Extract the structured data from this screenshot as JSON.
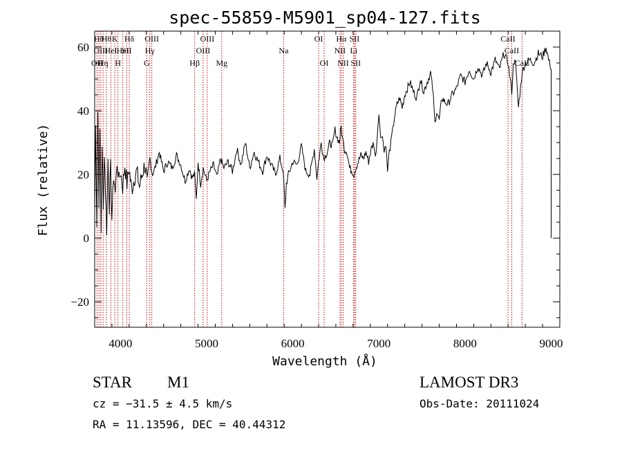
{
  "chart_data": {
    "type": "line",
    "title": "spec-55859-M5901_sp04-127.fits",
    "xlabel": "Wavelength (Å)",
    "ylabel": "Flux (relative)",
    "xlim": [
      3700,
      9100
    ],
    "ylim": [
      -28,
      65
    ],
    "xticks": [
      4000,
      5000,
      6000,
      7000,
      8000,
      9000
    ],
    "yticks": [
      -20,
      0,
      20,
      40,
      60
    ],
    "xtick_labels": [
      "4000",
      "5000",
      "6000",
      "7000",
      "8000",
      "9000"
    ],
    "ytick_labels": [
      "−20",
      "0",
      "20",
      "40",
      "60"
    ],
    "series": [
      {
        "name": "flux",
        "x": [
          3700,
          3712,
          3725,
          3737,
          3750,
          3762,
          3775,
          3787,
          3800,
          3812,
          3825,
          3840,
          3855,
          3870,
          3885,
          3900,
          3920,
          3940,
          3960,
          3980,
          4000,
          4025,
          4050,
          4075,
          4100,
          4130,
          4160,
          4190,
          4220,
          4250,
          4280,
          4310,
          4340,
          4370,
          4400,
          4450,
          4500,
          4550,
          4600,
          4650,
          4700,
          4750,
          4800,
          4830,
          4860,
          4880,
          4900,
          4930,
          4960,
          5000,
          5040,
          5080,
          5120,
          5160,
          5200,
          5250,
          5300,
          5350,
          5400,
          5450,
          5500,
          5550,
          5600,
          5650,
          5700,
          5750,
          5800,
          5850,
          5880,
          5895,
          5910,
          5925,
          5950,
          6000,
          6050,
          6100,
          6150,
          6200,
          6250,
          6280,
          6300,
          6330,
          6360,
          6400,
          6430,
          6460,
          6490,
          6510,
          6540,
          6562,
          6580,
          6600,
          6630,
          6660,
          6690,
          6710,
          6730,
          6760,
          6790,
          6820,
          6850,
          6880,
          6910,
          6940,
          6960,
          6980,
          7000,
          7020,
          7040,
          7060,
          7080,
          7100,
          7120,
          7140,
          7160,
          7180,
          7210,
          7240,
          7270,
          7300,
          7330,
          7360,
          7400,
          7440,
          7480,
          7520,
          7560,
          7600,
          7630,
          7650,
          7670,
          7700,
          7730,
          7760,
          7800,
          7850,
          7900,
          7950,
          8000,
          8050,
          8100,
          8150,
          8200,
          8250,
          8300,
          8350,
          8400,
          8450,
          8500,
          8542,
          8560,
          8580,
          8620,
          8662,
          8700,
          8750,
          8800,
          8850,
          8900,
          8940,
          8970,
          8990,
          9000
        ],
        "y": [
          8,
          35,
          5,
          40,
          12,
          32,
          2,
          30,
          8,
          28,
          15,
          3,
          25,
          10,
          22,
          6,
          20,
          14,
          24,
          18,
          21,
          16,
          23,
          17,
          22,
          15,
          19,
          21,
          16,
          20,
          23,
          18,
          25,
          20,
          22,
          27,
          21,
          24,
          22,
          26,
          23,
          18,
          22,
          19,
          20,
          12,
          24,
          17,
          22,
          18,
          21,
          23,
          19,
          25,
          22,
          24,
          21,
          28,
          23,
          30,
          22,
          27,
          24,
          21,
          26,
          23,
          20,
          25,
          22,
          18,
          9,
          17,
          20,
          24,
          23,
          29,
          21,
          20,
          28,
          19,
          24,
          30,
          25,
          27,
          30,
          29,
          34,
          32,
          30,
          35,
          31,
          28,
          27,
          22,
          21,
          20,
          22,
          24,
          26,
          25,
          27,
          24,
          28,
          30,
          25,
          32,
          40,
          31,
          33,
          27,
          30,
          21,
          27,
          30,
          34,
          38,
          42,
          44,
          41,
          45,
          47,
          49,
          46,
          44,
          50,
          46,
          49,
          52,
          45,
          36,
          40,
          37,
          44,
          43,
          42,
          45,
          47,
          51,
          49,
          53,
          50,
          54,
          51,
          55,
          52,
          56,
          53,
          58,
          55,
          46,
          54,
          57,
          41,
          52,
          55,
          56,
          55,
          58,
          57,
          60,
          56,
          54,
          53
        ],
        "color": "#000000"
      }
    ],
    "spectral_lines": [
      {
        "x": 3727,
        "label": "OII",
        "tier": 2
      },
      {
        "x": 3750,
        "label": "Hθ",
        "tier": 0
      },
      {
        "x": 3771,
        "label": "OIII",
        "tier": 1
      },
      {
        "x": 3798,
        "label": "Hη",
        "tier": 2
      },
      {
        "x": 3835,
        "label": "Hθ",
        "tier": 0
      },
      {
        "x": 3889,
        "label": "HeI",
        "tier": 1
      },
      {
        "x": 3934,
        "label": "K",
        "tier": 0
      },
      {
        "x": 3970,
        "label": "H",
        "tier": 2
      },
      {
        "x": 4026,
        "label": "HeI",
        "tier": 1
      },
      {
        "x": 4072,
        "label": "SII",
        "tier": 1
      },
      {
        "x": 4102,
        "label": "Hδ",
        "tier": 0
      },
      {
        "x": 4304,
        "label": "G",
        "tier": 2
      },
      {
        "x": 4340,
        "label": "Hγ",
        "tier": 1
      },
      {
        "x": 4363,
        "label": "OIII",
        "tier": 0
      },
      {
        "x": 4861,
        "label": "Hβ",
        "tier": 2
      },
      {
        "x": 4959,
        "label": "OIII",
        "tier": 1
      },
      {
        "x": 5007,
        "label": "OIII",
        "tier": 0
      },
      {
        "x": 5175,
        "label": "Mg",
        "tier": 2
      },
      {
        "x": 5894,
        "label": "Na",
        "tier": 1
      },
      {
        "x": 6300,
        "label": "OI",
        "tier": 0
      },
      {
        "x": 6364,
        "label": "OI",
        "tier": 2
      },
      {
        "x": 6548,
        "label": "NII",
        "tier": 1
      },
      {
        "x": 6563,
        "label": "Hα",
        "tier": 0
      },
      {
        "x": 6584,
        "label": "NII",
        "tier": 2
      },
      {
        "x": 6707,
        "label": "Li",
        "tier": 1
      },
      {
        "x": 6716,
        "label": "SII",
        "tier": 0
      },
      {
        "x": 6731,
        "label": "SII",
        "tier": 2
      },
      {
        "x": 8498,
        "label": "CaII",
        "tier": 0
      },
      {
        "x": 8542,
        "label": "CaII",
        "tier": 1
      },
      {
        "x": 8662,
        "label": "CaII",
        "tier": 2
      }
    ]
  },
  "info": {
    "class": "STAR",
    "subclass": "M1",
    "survey": "LAMOST DR3",
    "cz": "cz = −31.5 ± 4.5 km/s",
    "obs_date": "Obs-Date: 20111024",
    "coords": "RA =  11.13596, DEC =  40.44312"
  },
  "colors": {
    "lines": "#cc0000",
    "axes": "#000000",
    "background": "#ffffff"
  }
}
